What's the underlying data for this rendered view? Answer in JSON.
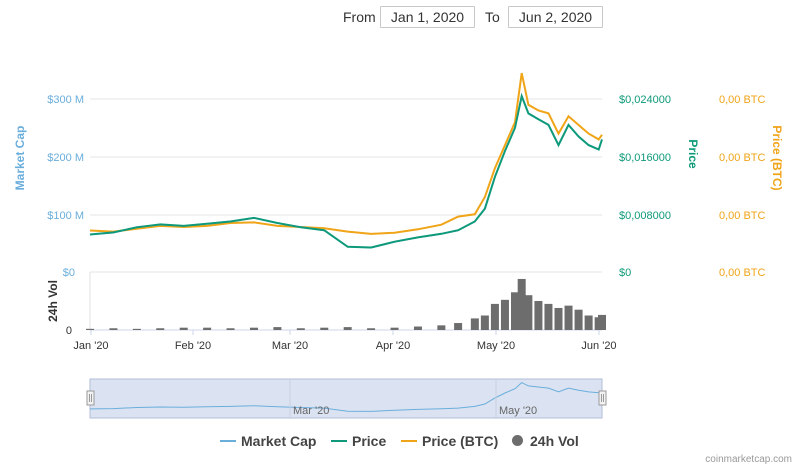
{
  "range": {
    "from_label": "From",
    "from_value": "Jan 1, 2020",
    "to_label": "To",
    "to_value": "Jun 2, 2020"
  },
  "credits": "coinmarketcap.com",
  "colors": {
    "market_cap": "#6aaedc",
    "price": "#0e9a7a",
    "price_btc": "#f0a418",
    "volume": "#6d6d6d",
    "grid": "#e6e6e6",
    "navigator_fill": "#dbe3f2"
  },
  "chart_data": {
    "type": "line",
    "axes": {
      "market_cap": {
        "title": "Market Cap",
        "ticks": [
          "$100 M",
          "$200 M",
          "$300 M"
        ],
        "ylim": [
          0,
          300000000
        ]
      },
      "price": {
        "title": "Price",
        "ticks": [
          "$0",
          "$0,008000",
          "$0,016000",
          "$0,024000"
        ],
        "ylim": [
          0,
          0.024
        ]
      },
      "price_btc": {
        "title": "Price (BTC)",
        "ticks": [
          "0,00 BTC",
          "0,00 BTC",
          "0,00 BTC",
          "0,00 BTC"
        ]
      },
      "volume": {
        "title": "24h Vol",
        "ticks": [
          "$0",
          "0"
        ]
      },
      "x_ticks": [
        "Jan '20",
        "Feb '20",
        "Mar '20",
        "Apr '20",
        "May '20",
        "Jun '20"
      ],
      "navigator_ticks": [
        "Mar '20",
        "May '20"
      ]
    },
    "x": [
      "2020-01-01",
      "2020-01-08",
      "2020-01-15",
      "2020-01-22",
      "2020-01-29",
      "2020-02-05",
      "2020-02-12",
      "2020-02-19",
      "2020-02-26",
      "2020-03-04",
      "2020-03-11",
      "2020-03-18",
      "2020-03-25",
      "2020-04-01",
      "2020-04-08",
      "2020-04-15",
      "2020-04-20",
      "2020-04-25",
      "2020-04-28",
      "2020-05-01",
      "2020-05-04",
      "2020-05-07",
      "2020-05-09",
      "2020-05-11",
      "2020-05-14",
      "2020-05-17",
      "2020-05-20",
      "2020-05-23",
      "2020-05-26",
      "2020-05-29",
      "2020-06-01",
      "2020-06-02"
    ],
    "series": [
      {
        "name": "Market Cap",
        "values": [
          65000000,
          68000000,
          78000000,
          82000000,
          80000000,
          84000000,
          88000000,
          94000000,
          85000000,
          78000000,
          72000000,
          44000000,
          42000000,
          52000000,
          60000000,
          66000000,
          72000000,
          88000000,
          110000000,
          165000000,
          210000000,
          250000000,
          305000000,
          275000000,
          265000000,
          255000000,
          220000000,
          255000000,
          235000000,
          220000000,
          213000000,
          230000000
        ]
      },
      {
        "name": "Price",
        "values": [
          0.0052,
          0.0055,
          0.0062,
          0.0066,
          0.0064,
          0.0067,
          0.007,
          0.0075,
          0.0068,
          0.0062,
          0.0058,
          0.0035,
          0.0034,
          0.0042,
          0.0048,
          0.0053,
          0.0058,
          0.007,
          0.0088,
          0.0132,
          0.0168,
          0.02,
          0.0244,
          0.022,
          0.0212,
          0.0204,
          0.0176,
          0.0204,
          0.0188,
          0.0176,
          0.017,
          0.0184
        ]
      },
      {
        "name": "Price (BTC)",
        "values": [
          72000000,
          70000000,
          75000000,
          80000000,
          78000000,
          80000000,
          85000000,
          86000000,
          80000000,
          78000000,
          76000000,
          70000000,
          66000000,
          68000000,
          74000000,
          82000000,
          96000000,
          100000000,
          130000000,
          180000000,
          220000000,
          260000000,
          345000000,
          290000000,
          280000000,
          275000000,
          240000000,
          270000000,
          255000000,
          240000000,
          230000000,
          238000000
        ]
      },
      {
        "name": "24h Vol",
        "values": [
          0.02,
          0.03,
          0.02,
          0.03,
          0.04,
          0.04,
          0.03,
          0.04,
          0.05,
          0.03,
          0.04,
          0.05,
          0.03,
          0.04,
          0.06,
          0.08,
          0.12,
          0.2,
          0.25,
          0.45,
          0.52,
          0.65,
          0.88,
          0.6,
          0.5,
          0.45,
          0.38,
          0.42,
          0.35,
          0.25,
          0.22,
          0.26
        ]
      }
    ],
    "legend": [
      "Market Cap",
      "Price",
      "Price (BTC)",
      "24h Vol"
    ],
    "legend_placement": "bottom",
    "grid": true
  }
}
